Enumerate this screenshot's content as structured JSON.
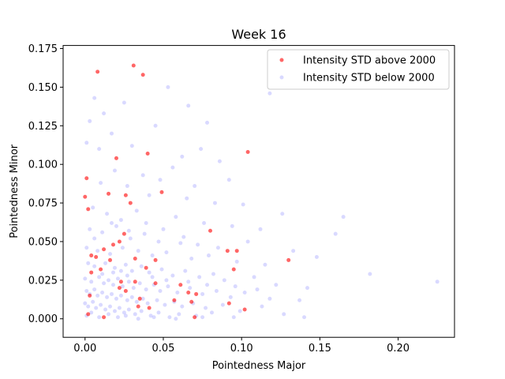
{
  "chart_data": {
    "type": "scatter",
    "title": "Week 16",
    "xlabel": "Pointedness Major",
    "ylabel": "Pointedness Minor",
    "xlim": [
      -0.014,
      0.236
    ],
    "ylim": [
      -0.012,
      0.177
    ],
    "xticks": [
      0.0,
      0.05,
      0.1,
      0.15,
      0.2
    ],
    "xtick_labels": [
      "0.00",
      "0.05",
      "0.10",
      "0.15",
      "0.20"
    ],
    "yticks": [
      0.0,
      0.025,
      0.05,
      0.075,
      0.1,
      0.125,
      0.15,
      0.175
    ],
    "ytick_labels": [
      "0.000",
      "0.025",
      "0.050",
      "0.075",
      "0.100",
      "0.125",
      "0.150",
      "0.175"
    ],
    "grid": false,
    "legend_position": "top-right",
    "series": [
      {
        "name": "Intensity STD above 2000",
        "color": "#ff0000",
        "opacity": 0.6,
        "points": [
          [
            0.031,
            0.164
          ],
          [
            0.008,
            0.16
          ],
          [
            0.037,
            0.158
          ],
          [
            0.04,
            0.107
          ],
          [
            0.104,
            0.108
          ],
          [
            0.02,
            0.104
          ],
          [
            0.001,
            0.091
          ],
          [
            0.049,
            0.082
          ],
          [
            0.015,
            0.081
          ],
          [
            0.026,
            0.08
          ],
          [
            0.0,
            0.079
          ],
          [
            0.029,
            0.075
          ],
          [
            0.002,
            0.071
          ],
          [
            0.025,
            0.055
          ],
          [
            0.08,
            0.057
          ],
          [
            0.022,
            0.05
          ],
          [
            0.018,
            0.048
          ],
          [
            0.004,
            0.041
          ],
          [
            0.012,
            0.045
          ],
          [
            0.007,
            0.04
          ],
          [
            0.016,
            0.038
          ],
          [
            0.032,
            0.039
          ],
          [
            0.045,
            0.038
          ],
          [
            0.091,
            0.044
          ],
          [
            0.097,
            0.044
          ],
          [
            0.13,
            0.038
          ],
          [
            0.039,
            0.033
          ],
          [
            0.004,
            0.03
          ],
          [
            0.01,
            0.032
          ],
          [
            0.095,
            0.032
          ],
          [
            0.023,
            0.024
          ],
          [
            0.032,
            0.024
          ],
          [
            0.045,
            0.023
          ],
          [
            0.061,
            0.022
          ],
          [
            0.022,
            0.02
          ],
          [
            0.026,
            0.018
          ],
          [
            0.066,
            0.017
          ],
          [
            0.071,
            0.016
          ],
          [
            0.003,
            0.015
          ],
          [
            0.035,
            0.013
          ],
          [
            0.057,
            0.012
          ],
          [
            0.068,
            0.011
          ],
          [
            0.092,
            0.01
          ],
          [
            0.041,
            0.007
          ],
          [
            0.102,
            0.006
          ],
          [
            0.002,
            0.003
          ],
          [
            0.012,
            0.001
          ],
          [
            0.07,
            0.001
          ],
          [
            0.034,
            0.008
          ]
        ]
      },
      {
        "name": "Intensity STD below 2000",
        "color": "#0000ff",
        "opacity": 0.15,
        "points": [
          [
            0.006,
            0.143
          ],
          [
            0.012,
            0.133
          ],
          [
            0.025,
            0.14
          ],
          [
            0.053,
            0.15
          ],
          [
            0.003,
            0.128
          ],
          [
            0.017,
            0.12
          ],
          [
            0.045,
            0.125
          ],
          [
            0.078,
            0.127
          ],
          [
            0.118,
            0.146
          ],
          [
            0.066,
            0.138
          ],
          [
            0.009,
            0.11
          ],
          [
            0.03,
            0.112
          ],
          [
            0.062,
            0.105
          ],
          [
            0.074,
            0.11
          ],
          [
            0.086,
            0.102
          ],
          [
            0.001,
            0.114
          ],
          [
            0.019,
            0.096
          ],
          [
            0.037,
            0.093
          ],
          [
            0.048,
            0.09
          ],
          [
            0.056,
            0.098
          ],
          [
            0.07,
            0.086
          ],
          [
            0.092,
            0.09
          ],
          [
            0.01,
            0.088
          ],
          [
            0.027,
            0.086
          ],
          [
            0.041,
            0.08
          ],
          [
            0.065,
            0.078
          ],
          [
            0.083,
            0.075
          ],
          [
            0.101,
            0.074
          ],
          [
            0.126,
            0.068
          ],
          [
            0.165,
            0.066
          ],
          [
            0.005,
            0.072
          ],
          [
            0.014,
            0.068
          ],
          [
            0.023,
            0.064
          ],
          [
            0.033,
            0.07
          ],
          [
            0.058,
            0.066
          ],
          [
            0.076,
            0.062
          ],
          [
            0.094,
            0.06
          ],
          [
            0.112,
            0.058
          ],
          [
            0.16,
            0.055
          ],
          [
            0.003,
            0.058
          ],
          [
            0.011,
            0.056
          ],
          [
            0.02,
            0.06
          ],
          [
            0.029,
            0.052
          ],
          [
            0.038,
            0.055
          ],
          [
            0.047,
            0.05
          ],
          [
            0.063,
            0.053
          ],
          [
            0.072,
            0.048
          ],
          [
            0.085,
            0.046
          ],
          [
            0.104,
            0.05
          ],
          [
            0.133,
            0.044
          ],
          [
            0.148,
            0.04
          ],
          [
            0.001,
            0.046
          ],
          [
            0.008,
            0.044
          ],
          [
            0.016,
            0.042
          ],
          [
            0.024,
            0.046
          ],
          [
            0.034,
            0.044
          ],
          [
            0.043,
            0.041
          ],
          [
            0.052,
            0.043
          ],
          [
            0.068,
            0.039
          ],
          [
            0.079,
            0.041
          ],
          [
            0.097,
            0.037
          ],
          [
            0.115,
            0.035
          ],
          [
            0.002,
            0.036
          ],
          [
            0.006,
            0.034
          ],
          [
            0.013,
            0.036
          ],
          [
            0.019,
            0.033
          ],
          [
            0.026,
            0.035
          ],
          [
            0.03,
            0.031
          ],
          [
            0.036,
            0.034
          ],
          [
            0.041,
            0.03
          ],
          [
            0.049,
            0.032
          ],
          [
            0.056,
            0.028
          ],
          [
            0.064,
            0.031
          ],
          [
            0.073,
            0.027
          ],
          [
            0.082,
            0.029
          ],
          [
            0.089,
            0.025
          ],
          [
            0.108,
            0.027
          ],
          [
            0.122,
            0.022
          ],
          [
            0.142,
            0.02
          ],
          [
            0.182,
            0.029
          ],
          [
            0.225,
            0.024
          ],
          [
            0.0,
            0.026
          ],
          [
            0.004,
            0.024
          ],
          [
            0.009,
            0.027
          ],
          [
            0.012,
            0.023
          ],
          [
            0.015,
            0.025
          ],
          [
            0.018,
            0.022
          ],
          [
            0.021,
            0.026
          ],
          [
            0.024,
            0.021
          ],
          [
            0.028,
            0.024
          ],
          [
            0.031,
            0.02
          ],
          [
            0.035,
            0.023
          ],
          [
            0.039,
            0.019
          ],
          [
            0.044,
            0.022
          ],
          [
            0.048,
            0.018
          ],
          [
            0.053,
            0.021
          ],
          [
            0.059,
            0.017
          ],
          [
            0.067,
            0.02
          ],
          [
            0.075,
            0.016
          ],
          [
            0.084,
            0.018
          ],
          [
            0.093,
            0.014
          ],
          [
            0.102,
            0.017
          ],
          [
            0.118,
            0.013
          ],
          [
            0.137,
            0.012
          ],
          [
            0.001,
            0.018
          ],
          [
            0.003,
            0.016
          ],
          [
            0.006,
            0.019
          ],
          [
            0.008,
            0.015
          ],
          [
            0.011,
            0.017
          ],
          [
            0.014,
            0.014
          ],
          [
            0.017,
            0.016
          ],
          [
            0.02,
            0.013
          ],
          [
            0.023,
            0.015
          ],
          [
            0.027,
            0.012
          ],
          [
            0.03,
            0.014
          ],
          [
            0.033,
            0.011
          ],
          [
            0.037,
            0.013
          ],
          [
            0.04,
            0.01
          ],
          [
            0.046,
            0.012
          ],
          [
            0.051,
            0.009
          ],
          [
            0.057,
            0.011
          ],
          [
            0.062,
            0.008
          ],
          [
            0.069,
            0.01
          ],
          [
            0.077,
            0.007
          ],
          [
            0.088,
            0.009
          ],
          [
            0.099,
            0.005
          ],
          [
            0.113,
            0.008
          ],
          [
            0.127,
            0.003
          ],
          [
            0.0,
            0.01
          ],
          [
            0.002,
            0.008
          ],
          [
            0.005,
            0.011
          ],
          [
            0.007,
            0.007
          ],
          [
            0.01,
            0.009
          ],
          [
            0.013,
            0.006
          ],
          [
            0.016,
            0.008
          ],
          [
            0.019,
            0.005
          ],
          [
            0.022,
            0.007
          ],
          [
            0.025,
            0.004
          ],
          [
            0.028,
            0.006
          ],
          [
            0.032,
            0.003
          ],
          [
            0.036,
            0.005
          ],
          [
            0.042,
            0.002
          ],
          [
            0.047,
            0.004
          ],
          [
            0.054,
            0.001
          ],
          [
            0.06,
            0.003
          ],
          [
            0.071,
            0.002
          ],
          [
            0.081,
            0.004
          ],
          [
            0.095,
            0.001
          ],
          [
            0.14,
            0.001
          ],
          [
            0.001,
            0.002
          ],
          [
            0.004,
            0.004
          ],
          [
            0.009,
            0.001
          ],
          [
            0.015,
            0.003
          ],
          [
            0.021,
            0.001
          ],
          [
            0.026,
            0.002
          ],
          [
            0.034,
            0.0
          ],
          [
            0.044,
            0.001
          ],
          [
            0.058,
            0.0
          ],
          [
            0.075,
            0.001
          ],
          [
            0.006,
            0.052
          ],
          [
            0.017,
            0.062
          ],
          [
            0.028,
            0.057
          ],
          [
            0.039,
            0.062
          ],
          [
            0.05,
            0.058
          ],
          [
            0.061,
            0.049
          ],
          [
            0.027,
            0.028
          ],
          [
            0.018,
            0.03
          ],
          [
            0.011,
            0.029
          ],
          [
            0.023,
            0.031
          ],
          [
            0.043,
            0.027
          ],
          [
            0.052,
            0.025
          ],
          [
            0.066,
            0.024
          ],
          [
            0.078,
            0.022
          ],
          [
            0.096,
            0.021
          ],
          [
            0.11,
            0.019
          ]
        ]
      }
    ]
  }
}
